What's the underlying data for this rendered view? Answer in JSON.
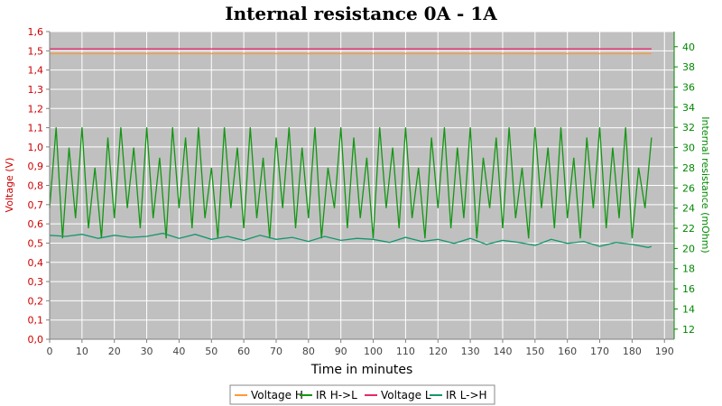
{
  "chart_data": {
    "type": "line",
    "title": "Internal resistance  0A - 1A",
    "xlabel": "Time in minutes",
    "ylabel_left": "Voltage (V)",
    "ylabel_right": "Internal resistance (mOhm)",
    "xlim": [
      0,
      193
    ],
    "ylim_left": [
      0.0,
      1.6
    ],
    "ylim_right": [
      11,
      41.5
    ],
    "x_ticks": [
      0,
      10,
      20,
      30,
      40,
      50,
      60,
      70,
      80,
      90,
      100,
      110,
      120,
      130,
      140,
      150,
      160,
      170,
      180,
      190
    ],
    "y_left_ticks": [
      "0,0",
      "0,1",
      "0,2",
      "0,3",
      "0,4",
      "0,5",
      "0,6",
      "0,7",
      "0,8",
      "0,9",
      "1,0",
      "1,1",
      "1,2",
      "1,3",
      "1,4",
      "1,5",
      "1,6"
    ],
    "y_right_ticks": [
      12,
      14,
      16,
      18,
      20,
      22,
      24,
      26,
      28,
      30,
      32,
      34,
      36,
      38,
      40
    ],
    "grid": true,
    "legend_position": "bottom",
    "series": [
      {
        "name": "Voltage H",
        "axis": "left",
        "color": "#ff9933",
        "x": [
          0,
          186
        ],
        "y": [
          1.485,
          1.485
        ]
      },
      {
        "name": "IR H->L",
        "axis": "right",
        "color": "#149614",
        "x": [
          0,
          2,
          4,
          6,
          8,
          10,
          12,
          14,
          16,
          18,
          20,
          22,
          24,
          26,
          28,
          30,
          32,
          34,
          36,
          38,
          40,
          42,
          44,
          46,
          48,
          50,
          52,
          54,
          56,
          58,
          60,
          62,
          64,
          66,
          68,
          70,
          72,
          74,
          76,
          78,
          80,
          82,
          84,
          86,
          88,
          90,
          92,
          94,
          96,
          98,
          100,
          102,
          104,
          106,
          108,
          110,
          112,
          114,
          116,
          118,
          120,
          122,
          124,
          126,
          128,
          130,
          132,
          134,
          136,
          138,
          140,
          142,
          144,
          146,
          148,
          150,
          152,
          154,
          156,
          158,
          160,
          162,
          164,
          166,
          168,
          170,
          172,
          174,
          176,
          178,
          180,
          182,
          184,
          186
        ],
        "y": [
          24,
          32,
          21,
          30,
          23,
          32,
          22,
          28,
          21,
          31,
          23,
          32,
          24,
          30,
          22,
          32,
          23,
          29,
          21,
          32,
          24,
          31,
          22,
          32,
          23,
          28,
          21,
          32,
          24,
          30,
          22,
          32,
          23,
          29,
          21,
          31,
          24,
          32,
          22,
          30,
          23,
          32,
          21,
          28,
          24,
          32,
          22,
          31,
          23,
          29,
          21,
          32,
          24,
          30,
          22,
          32,
          23,
          28,
          21,
          31,
          24,
          32,
          22,
          30,
          23,
          32,
          21,
          29,
          24,
          31,
          22,
          32,
          23,
          28,
          21,
          32,
          24,
          30,
          22,
          32,
          23,
          29,
          21,
          31,
          24,
          32,
          22,
          30,
          23,
          32,
          21,
          28,
          24,
          31
        ]
      },
      {
        "name": "Voltage L",
        "axis": "left",
        "color": "#e6286e",
        "x": [
          0,
          186
        ],
        "y": [
          1.51,
          1.51
        ]
      },
      {
        "name": "IR L->H",
        "axis": "right",
        "color": "#14966e",
        "x": [
          0,
          5,
          10,
          15,
          20,
          25,
          30,
          35,
          40,
          45,
          50,
          55,
          60,
          65,
          70,
          75,
          80,
          85,
          90,
          95,
          100,
          105,
          110,
          115,
          120,
          125,
          130,
          135,
          140,
          145,
          150,
          155,
          160,
          165,
          170,
          175,
          180,
          185,
          186
        ],
        "y": [
          21.3,
          21.2,
          21.4,
          21.0,
          21.3,
          21.1,
          21.2,
          21.5,
          21.0,
          21.4,
          20.9,
          21.2,
          20.8,
          21.3,
          20.9,
          21.1,
          20.7,
          21.2,
          20.8,
          21.0,
          20.9,
          20.6,
          21.1,
          20.7,
          20.9,
          20.5,
          21.0,
          20.4,
          20.8,
          20.6,
          20.3,
          20.9,
          20.5,
          20.7,
          20.2,
          20.6,
          20.4,
          20.1,
          20.2
        ]
      }
    ]
  }
}
